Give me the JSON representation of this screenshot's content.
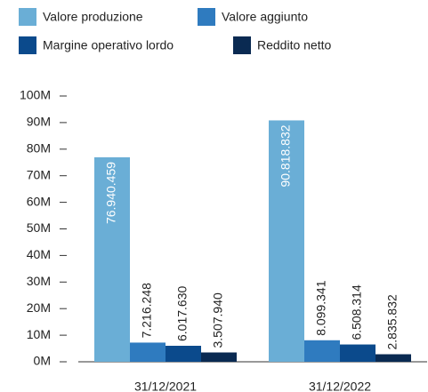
{
  "chart_data": {
    "type": "bar",
    "categories": [
      "31/12/2021",
      "31/12/2022"
    ],
    "series": [
      {
        "name": "Valore produzione",
        "color": "#6aaed6",
        "values": [
          76940459,
          90818832
        ],
        "value_labels": [
          "76.940.459",
          "90.818.832"
        ]
      },
      {
        "name": "Valore aggiunto",
        "color": "#2f7bbf",
        "values": [
          7216248,
          8099341
        ],
        "value_labels": [
          "7.216.248",
          "8.099.341"
        ]
      },
      {
        "name": "Margine operativo lordo",
        "color": "#0b4a8c",
        "values": [
          6017630,
          6508314
        ],
        "value_labels": [
          "6.017.630",
          "6.508.314"
        ]
      },
      {
        "name": "Reddito netto",
        "color": "#0a2a52",
        "values": [
          3507940,
          2835832
        ],
        "value_labels": [
          "3.507.940",
          "2.835.832"
        ]
      }
    ],
    "ylim": [
      0,
      100000000
    ],
    "yticks": [
      {
        "value": 0,
        "label": "0M"
      },
      {
        "value": 10000000,
        "label": "10M"
      },
      {
        "value": 20000000,
        "label": "20M"
      },
      {
        "value": 30000000,
        "label": "30M"
      },
      {
        "value": 40000000,
        "label": "40M"
      },
      {
        "value": 50000000,
        "label": "50M"
      },
      {
        "value": 60000000,
        "label": "60M"
      },
      {
        "value": 70000000,
        "label": "70M"
      },
      {
        "value": 80000000,
        "label": "80M"
      },
      {
        "value": 90000000,
        "label": "90M"
      },
      {
        "value": 100000000,
        "label": "100M"
      }
    ],
    "legend": "top-left"
  }
}
